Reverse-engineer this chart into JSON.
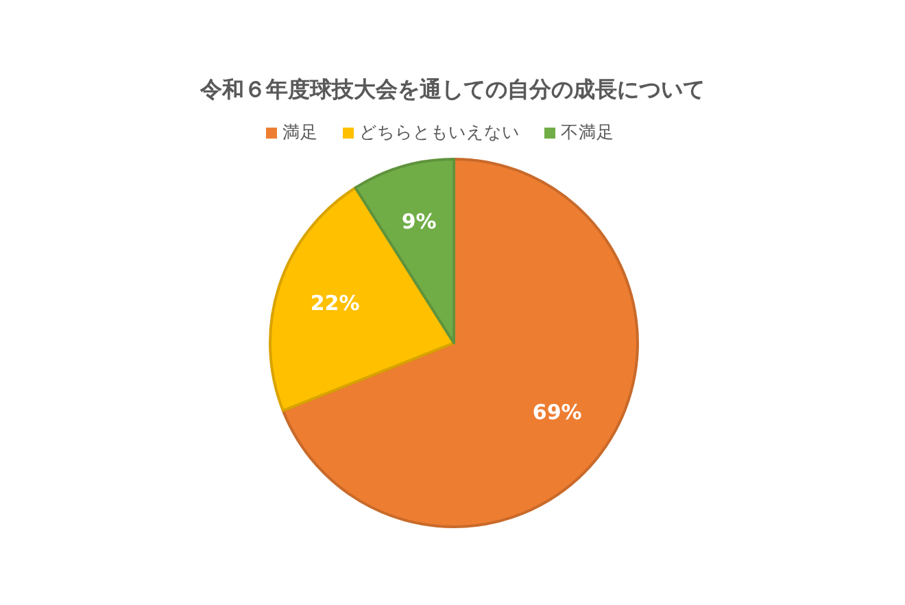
{
  "chart_data": {
    "type": "pie",
    "title": "令和６年度球技大会を通しての自分の成長について",
    "categories": [
      "満足",
      "どちらともいえない",
      "不満足"
    ],
    "values": [
      69,
      22,
      9
    ],
    "colors": [
      "#ed7d31",
      "#ffc000",
      "#70ad47"
    ],
    "value_labels": [
      "69%",
      "22%",
      "9%"
    ],
    "legend": "top"
  }
}
